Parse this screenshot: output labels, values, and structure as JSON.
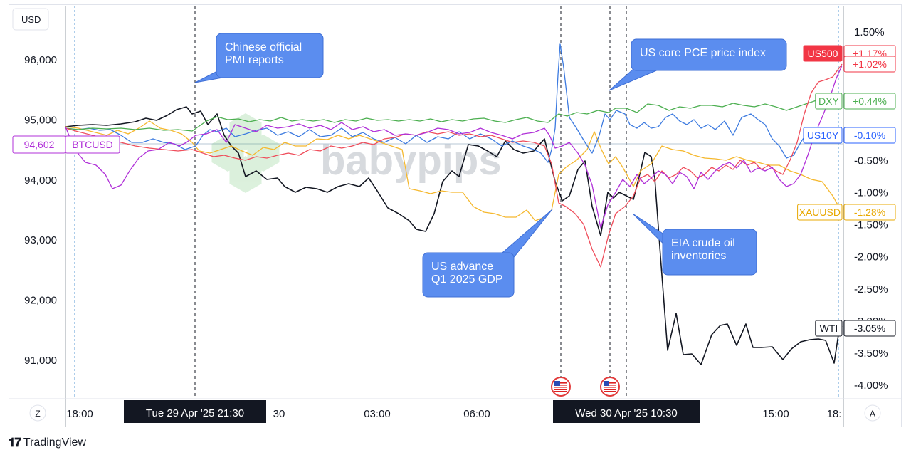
{
  "currency_label": "USD",
  "brand": "TradingView",
  "watermark": "babypips",
  "axis_buttons": {
    "left": "Z",
    "right": "A"
  },
  "chart_data": {
    "type": "line",
    "x_labels": [
      "18:00",
      "30",
      "03:00",
      "06:00",
      "15:00",
      "18:"
    ],
    "crosshair_labels": [
      "Tue 29 Apr '25   21:30",
      "Wed 30 Apr '25   10:30"
    ],
    "left_axis": {
      "ticks": [
        "96,000",
        "95,000",
        "94,000",
        "93,000",
        "92,000",
        "91,000"
      ],
      "values": [
        96000,
        95000,
        94000,
        93000,
        92000,
        91000
      ]
    },
    "right_axis": {
      "ticks": [
        "1.50%",
        "-0.50%",
        "-1.00%",
        "-1.50%",
        "-2.00%",
        "-2.50%",
        "-3.00%",
        "-3.50%",
        "-4.00%"
      ],
      "values": [
        1.5,
        -0.5,
        -1.0,
        -1.5,
        -2.0,
        -2.5,
        -3.0,
        -3.5,
        -4.0
      ]
    },
    "price_marker": {
      "symbol": "BTCUSD",
      "value": "94,602"
    },
    "series": [
      {
        "name": "US500",
        "label": "+1.17%",
        "color": "#f23645",
        "line_color": "#ef4d5b",
        "end_pct": 1.17
      },
      {
        "name": "",
        "label": "+1.02%",
        "color": "#f23645",
        "line_color": "#ef4d5b",
        "end_pct": 1.02
      },
      {
        "name": "DXY",
        "label": "+0.44%",
        "color": "#4caf50",
        "line_color": "#4caf50",
        "end_pct": 0.44
      },
      {
        "name": "US10Y",
        "label": "-0.10%",
        "color": "#2962ff",
        "line_color": "#3d7be0",
        "end_pct": -0.1
      },
      {
        "name": "XAUUSD",
        "label": "-1.28%",
        "color": "#f5b82e",
        "line_color": "#f5b82e",
        "end_pct": -1.28
      },
      {
        "name": "WTI",
        "label": "-3.05%",
        "color": "#131722",
        "line_color": "#131722",
        "end_pct": -3.05
      }
    ],
    "annotations": [
      "Chinese official\nPMI reports",
      "US core PCE price index",
      "US advance\nQ1 2025 GDP",
      "EIA crude oil\ninventories"
    ],
    "event_icons": [
      "us-flag-icon",
      "us-flag-icon"
    ]
  }
}
